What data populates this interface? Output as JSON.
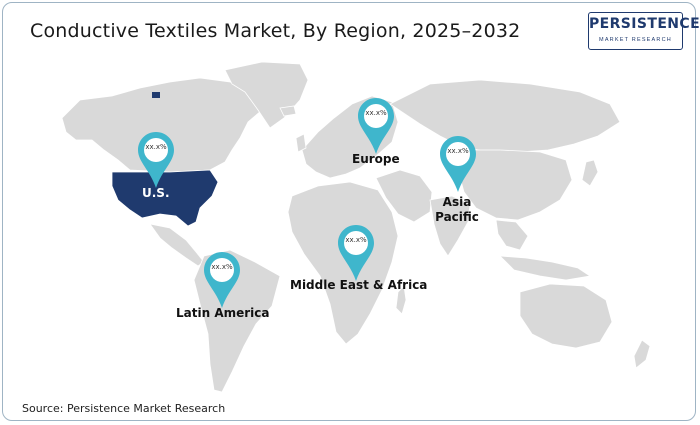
{
  "title": "Conductive Textiles Market, By Region, 2025–2032",
  "logo": {
    "main": "PERSISTENCE",
    "sub": "MARKET RESEARCH"
  },
  "regions": [
    {
      "name": "U.S.",
      "value": "xx.x%"
    },
    {
      "name": "Europe",
      "value": "xx.x%"
    },
    {
      "name": "Asia Pacific",
      "value": "xx.x%"
    },
    {
      "name": "Middle East & Africa",
      "value": "xx.x%"
    },
    {
      "name": "Latin America",
      "value": "xx.x%"
    }
  ],
  "source": "Source: Persistence Market Research",
  "colors": {
    "land": "#d9d9d9",
    "highlight": "#1f3a6e",
    "pin": "#3fb6cc",
    "pin_dark": "#2a8fa3",
    "frame": "#9fb4c4"
  }
}
